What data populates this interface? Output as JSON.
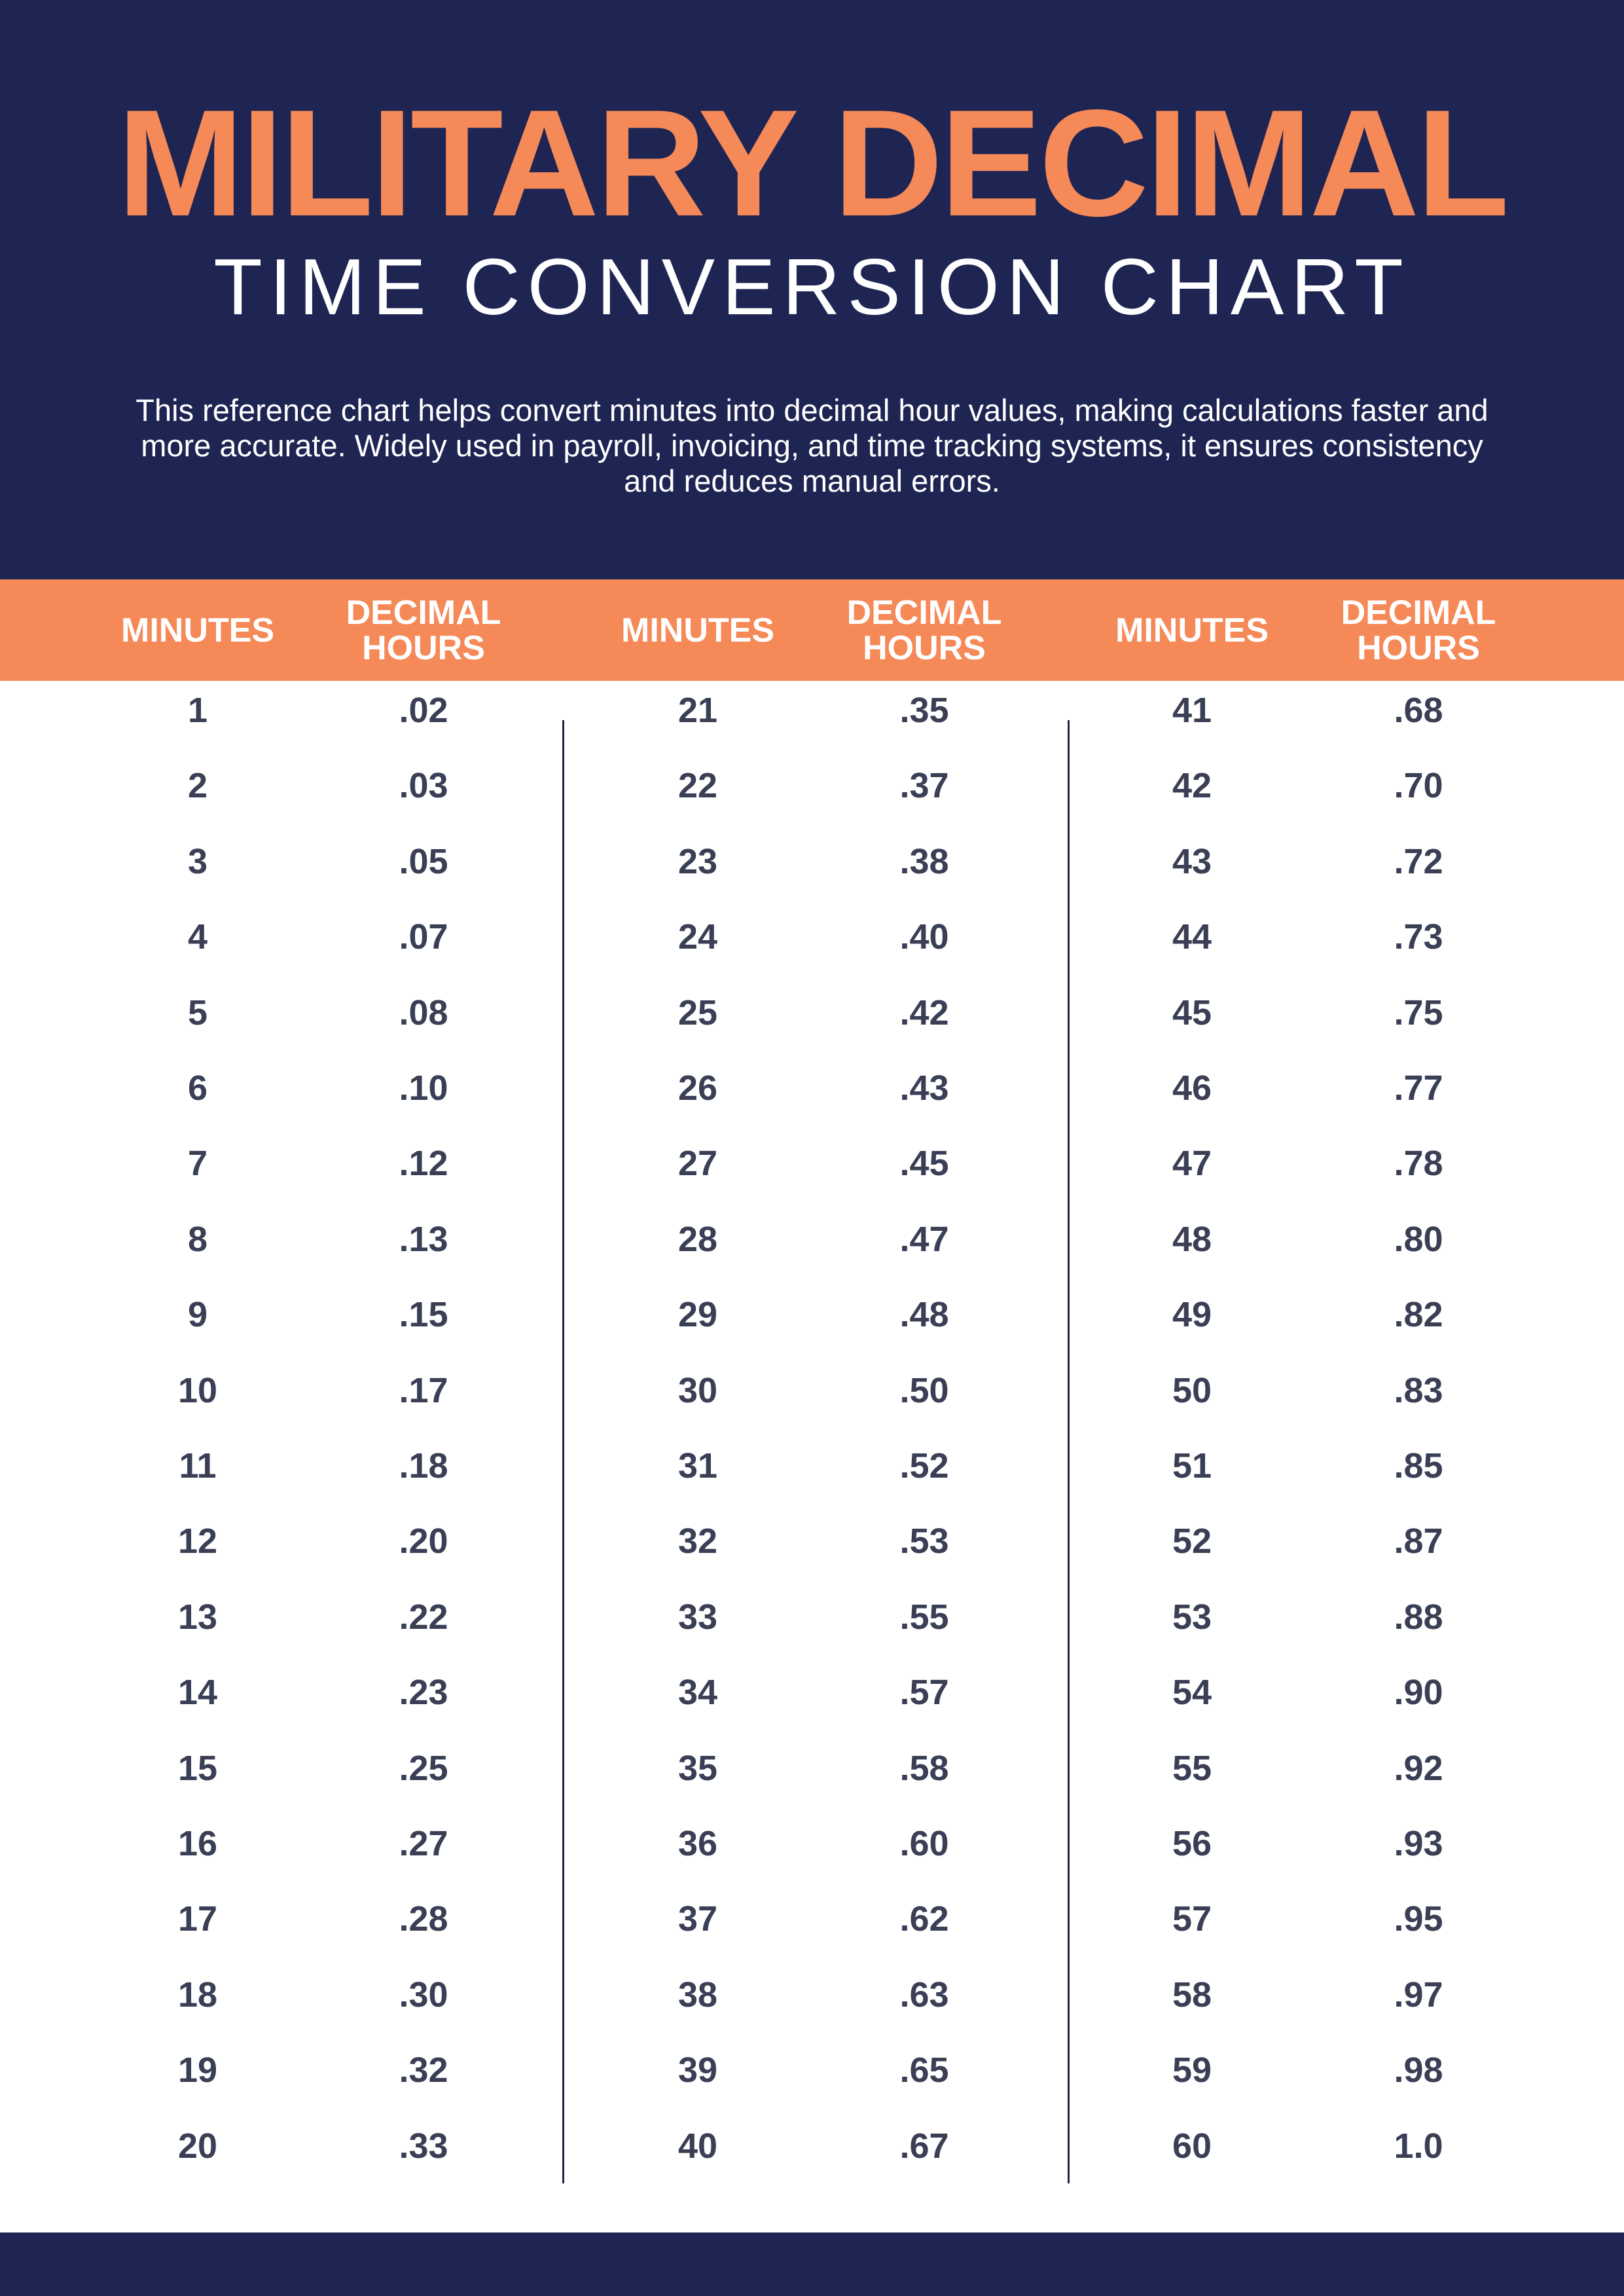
{
  "title": "MILITARY DECIMAL",
  "subtitle": "TIME CONVERSION CHART",
  "description": "This reference chart helps convert minutes into decimal hour values, making calculations faster and more accurate. Widely used in payroll, invoicing, and time tracking systems, it ensures consistency and reduces manual errors.",
  "colors": {
    "navy": "#1f2553",
    "orange": "#f58958",
    "text": "#3a3f55"
  },
  "column_headers": {
    "minutes": "MINUTES",
    "decimal_hours": "DECIMAL HOURS"
  },
  "groups": [
    {
      "rows": [
        {
          "minutes": "1",
          "decimal": ".02"
        },
        {
          "minutes": "2",
          "decimal": ".03"
        },
        {
          "minutes": "3",
          "decimal": ".05"
        },
        {
          "minutes": "4",
          "decimal": ".07"
        },
        {
          "minutes": "5",
          "decimal": ".08"
        },
        {
          "minutes": "6",
          "decimal": ".10"
        },
        {
          "minutes": "7",
          "decimal": ".12"
        },
        {
          "minutes": "8",
          "decimal": ".13"
        },
        {
          "minutes": "9",
          "decimal": ".15"
        },
        {
          "minutes": "10",
          "decimal": ".17"
        },
        {
          "minutes": "11",
          "decimal": ".18"
        },
        {
          "minutes": "12",
          "decimal": ".20"
        },
        {
          "minutes": "13",
          "decimal": ".22"
        },
        {
          "minutes": "14",
          "decimal": ".23"
        },
        {
          "minutes": "15",
          "decimal": ".25"
        },
        {
          "minutes": "16",
          "decimal": ".27"
        },
        {
          "minutes": "17",
          "decimal": ".28"
        },
        {
          "minutes": "18",
          "decimal": ".30"
        },
        {
          "minutes": "19",
          "decimal": ".32"
        },
        {
          "minutes": "20",
          "decimal": ".33"
        }
      ]
    },
    {
      "rows": [
        {
          "minutes": "21",
          "decimal": ".35"
        },
        {
          "minutes": "22",
          "decimal": ".37"
        },
        {
          "minutes": "23",
          "decimal": ".38"
        },
        {
          "minutes": "24",
          "decimal": ".40"
        },
        {
          "minutes": "25",
          "decimal": ".42"
        },
        {
          "minutes": "26",
          "decimal": ".43"
        },
        {
          "minutes": "27",
          "decimal": ".45"
        },
        {
          "minutes": "28",
          "decimal": ".47"
        },
        {
          "minutes": "29",
          "decimal": ".48"
        },
        {
          "minutes": "30",
          "decimal": ".50"
        },
        {
          "minutes": "31",
          "decimal": ".52"
        },
        {
          "minutes": "32",
          "decimal": ".53"
        },
        {
          "minutes": "33",
          "decimal": ".55"
        },
        {
          "minutes": "34",
          "decimal": ".57"
        },
        {
          "minutes": "35",
          "decimal": ".58"
        },
        {
          "minutes": "36",
          "decimal": ".60"
        },
        {
          "minutes": "37",
          "decimal": ".62"
        },
        {
          "minutes": "38",
          "decimal": ".63"
        },
        {
          "minutes": "39",
          "decimal": ".65"
        },
        {
          "minutes": "40",
          "decimal": ".67"
        }
      ]
    },
    {
      "rows": [
        {
          "minutes": "41",
          "decimal": ".68"
        },
        {
          "minutes": "42",
          "decimal": ".70"
        },
        {
          "minutes": "43",
          "decimal": ".72"
        },
        {
          "minutes": "44",
          "decimal": ".73"
        },
        {
          "minutes": "45",
          "decimal": ".75"
        },
        {
          "minutes": "46",
          "decimal": ".77"
        },
        {
          "minutes": "47",
          "decimal": ".78"
        },
        {
          "minutes": "48",
          "decimal": ".80"
        },
        {
          "minutes": "49",
          "decimal": ".82"
        },
        {
          "minutes": "50",
          "decimal": ".83"
        },
        {
          "minutes": "51",
          "decimal": ".85"
        },
        {
          "minutes": "52",
          "decimal": ".87"
        },
        {
          "minutes": "53",
          "decimal": ".88"
        },
        {
          "minutes": "54",
          "decimal": ".90"
        },
        {
          "minutes": "55",
          "decimal": ".92"
        },
        {
          "minutes": "56",
          "decimal": ".93"
        },
        {
          "minutes": "57",
          "decimal": ".95"
        },
        {
          "minutes": "58",
          "decimal": ".97"
        },
        {
          "minutes": "59",
          "decimal": ".98"
        },
        {
          "minutes": "60",
          "decimal": "1.0"
        }
      ]
    }
  ]
}
